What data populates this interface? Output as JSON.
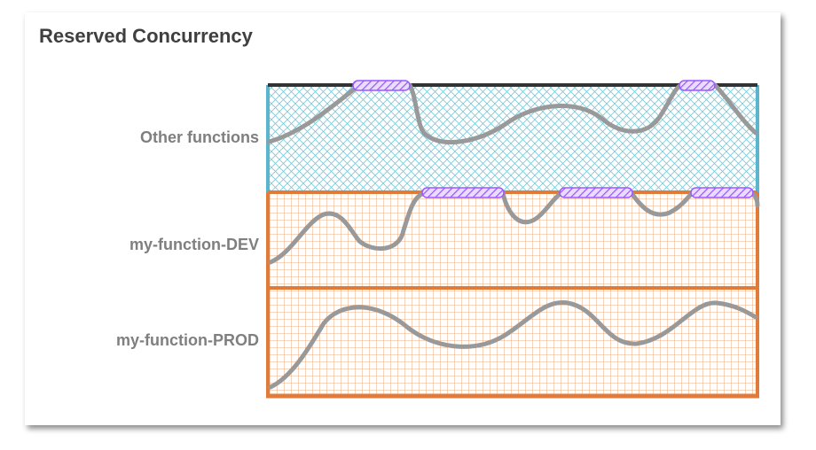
{
  "diagram": {
    "title": "Reserved Concurrency",
    "rows": [
      {
        "label": "Other functions"
      },
      {
        "label": "my-function-DEV"
      },
      {
        "label": "my-function-PROD"
      }
    ],
    "colors": {
      "unreserved_pool": "#5bb5cc",
      "reserved_pool": "#e07b39",
      "throttle_marker": "#9b59ff",
      "usage_curve": "#999999",
      "pool_limit_line": "#333333"
    }
  }
}
